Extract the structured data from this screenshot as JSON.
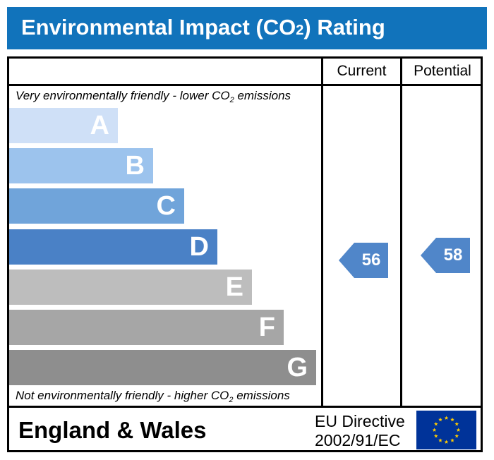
{
  "title": {
    "text": "Environmental Impact (CO",
    "sub": "2",
    "suffix": ") Rating"
  },
  "columns": {
    "current": "Current",
    "potential": "Potential"
  },
  "captions": {
    "top_prefix": "Very environmentally friendly - lower CO",
    "top_sub": "2",
    "top_suffix": " emissions",
    "bottom_prefix": "Not environmentally friendly - higher CO",
    "bottom_sub": "2",
    "bottom_suffix": " emissions"
  },
  "footer": {
    "country": "England & Wales",
    "directive_line1": "EU Directive",
    "directive_line2": "2002/91/EC"
  },
  "colors": {
    "title_bar": "#1173bb",
    "arrow": "#5086c9"
  },
  "chart_data": {
    "type": "bar",
    "categories": [
      "A",
      "B",
      "C",
      "D",
      "E",
      "F",
      "G"
    ],
    "band_colors": [
      "#cfe0f7",
      "#9cc3ed",
      "#70a4da",
      "#4a81c6",
      "#bdbdbd",
      "#a6a6a6",
      "#8e8e8e"
    ],
    "current": {
      "value": 56,
      "band": "D"
    },
    "potential": {
      "value": 58,
      "band": "D"
    }
  }
}
